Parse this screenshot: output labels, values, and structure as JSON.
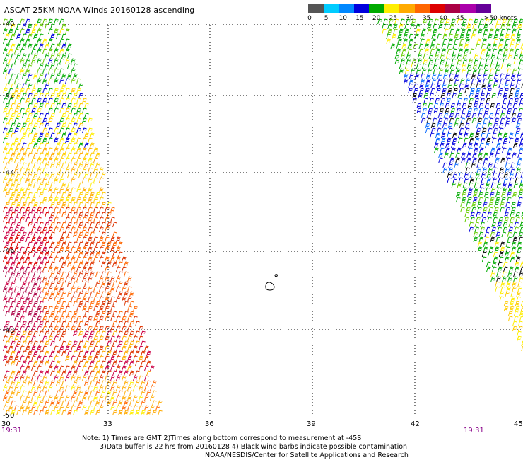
{
  "title": "ASCAT 25KM NOAA Winds 20160128 ascending",
  "colorbar": {
    "colors": [
      "#555555",
      "#00ccff",
      "#0088ff",
      "#0000dd",
      "#00aa00",
      "#ffee00",
      "#ffaa00",
      "#ff6600",
      "#dd0000",
      "#aa0044",
      "#aa00aa",
      "#660099"
    ],
    "labels": [
      "0",
      "5",
      "10",
      "15",
      "20",
      "25",
      "30",
      "35",
      "40",
      "45",
      ">50 knots"
    ]
  },
  "map": {
    "lat_labels": [
      "-40",
      "-42",
      "-44",
      "-46",
      "-48",
      "-50"
    ],
    "lon_labels": [
      "30",
      "33",
      "36",
      "39",
      "42",
      "45"
    ],
    "time_left": "19:31",
    "time_right": "19:31"
  },
  "notes": {
    "line1": "Note: 1) Times are GMT 2)Times along bottom correspond to measurement at -45S",
    "line2": "3)Data buffer is 22 hrs from 20160128 4) Black wind barbs indicate possible contamination",
    "line3": "NOAA/NESDIS/Center for Satellite Applications and Research"
  }
}
